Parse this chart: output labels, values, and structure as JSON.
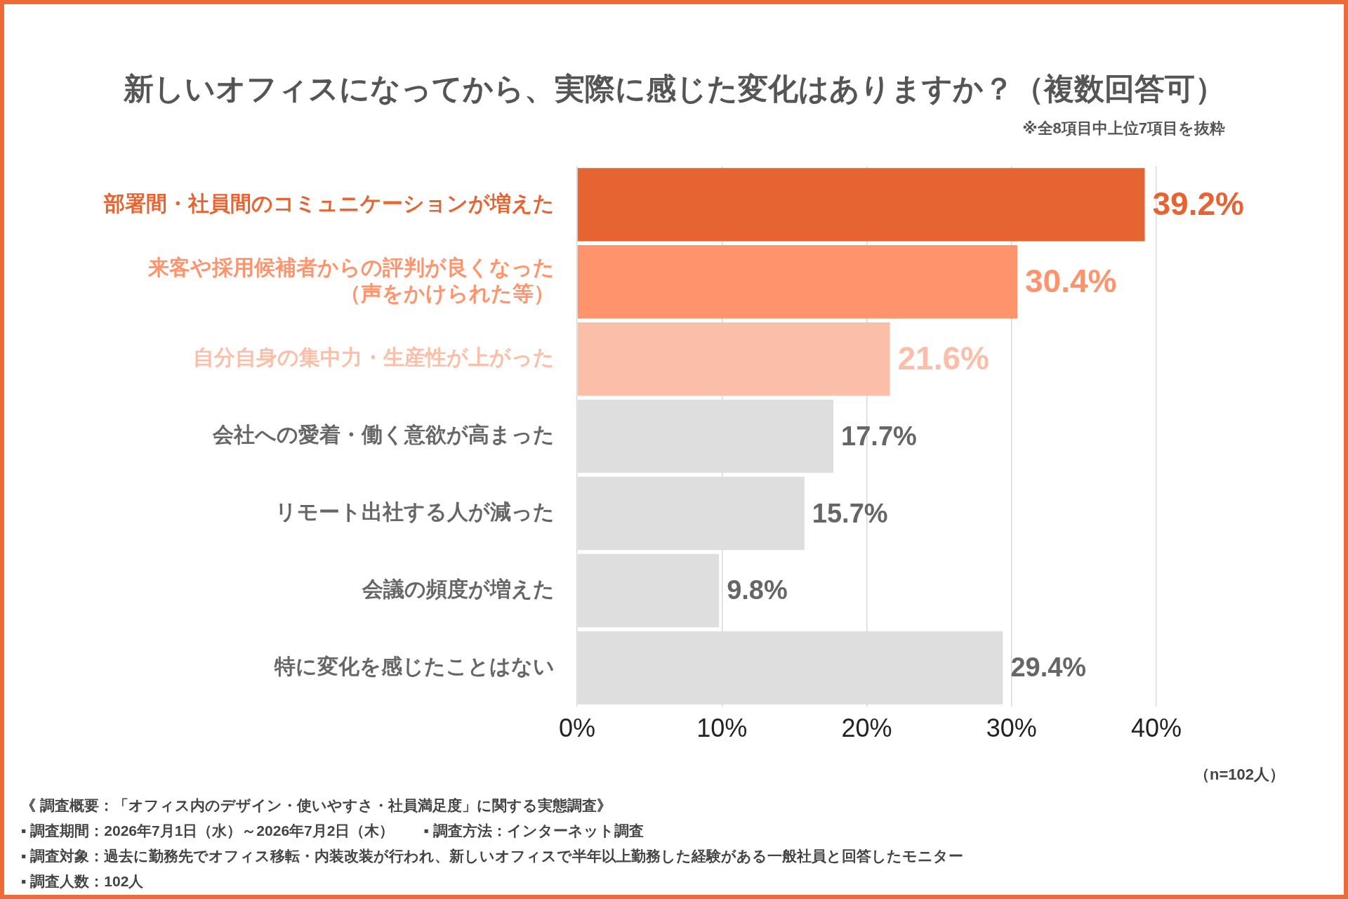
{
  "chart_data": {
    "type": "bar",
    "orientation": "horizontal",
    "title": "新しいオフィスになってから、実際に感じた変化はありますか？（複数回答可）",
    "subtitle": "※全8項目中上位7項目を抜粋",
    "categories": [
      "部署間・社員間のコミュニケーションが増えた",
      "来客や採用候補者からの評判が良くなった（声をかけられた等）",
      "自分自身の集中力・生産性が上がった",
      "会社への愛着・働く意欲が高まった",
      "リモート出社する人が減った",
      "会議の頻度が増えた",
      "特に変化を感じたことはない"
    ],
    "values": [
      39.2,
      30.4,
      21.6,
      17.7,
      15.7,
      9.8,
      29.4
    ],
    "colors": [
      "#e66332",
      "#ff946c",
      "#fbbea8",
      "#dedede",
      "#dedede",
      "#dedede",
      "#dedede"
    ],
    "value_labels": [
      "39.2%",
      "30.4%",
      "21.6%",
      "17.7%",
      "15.7%",
      "9.8%",
      "29.4%"
    ],
    "xlim": [
      0,
      40
    ],
    "xticks": [
      {
        "value": 0,
        "label": "0%"
      },
      {
        "value": 10,
        "label": "10%"
      },
      {
        "value": 20,
        "label": "20%"
      },
      {
        "value": 30,
        "label": "30%"
      },
      {
        "value": 40,
        "label": "40%"
      }
    ],
    "grid": "x",
    "annotations": [
      "（n=102人）",
      "《 調査概要：「オフィス内のデザイン・使いやすさ・社員満足度」に関する実態調査》",
      "▪ 調査期間：2026年7月1日（水）～2026年7月2日（木）　　▪ 調査方法：インターネット調査",
      "▪ 調査対象：過去に勤務先でオフィス移転・内装改装が行われ、新しいオフィスで半年以上勤務した経験がある一般社員と回答したモニター",
      "▪ 調査人数：102人"
    ]
  }
}
